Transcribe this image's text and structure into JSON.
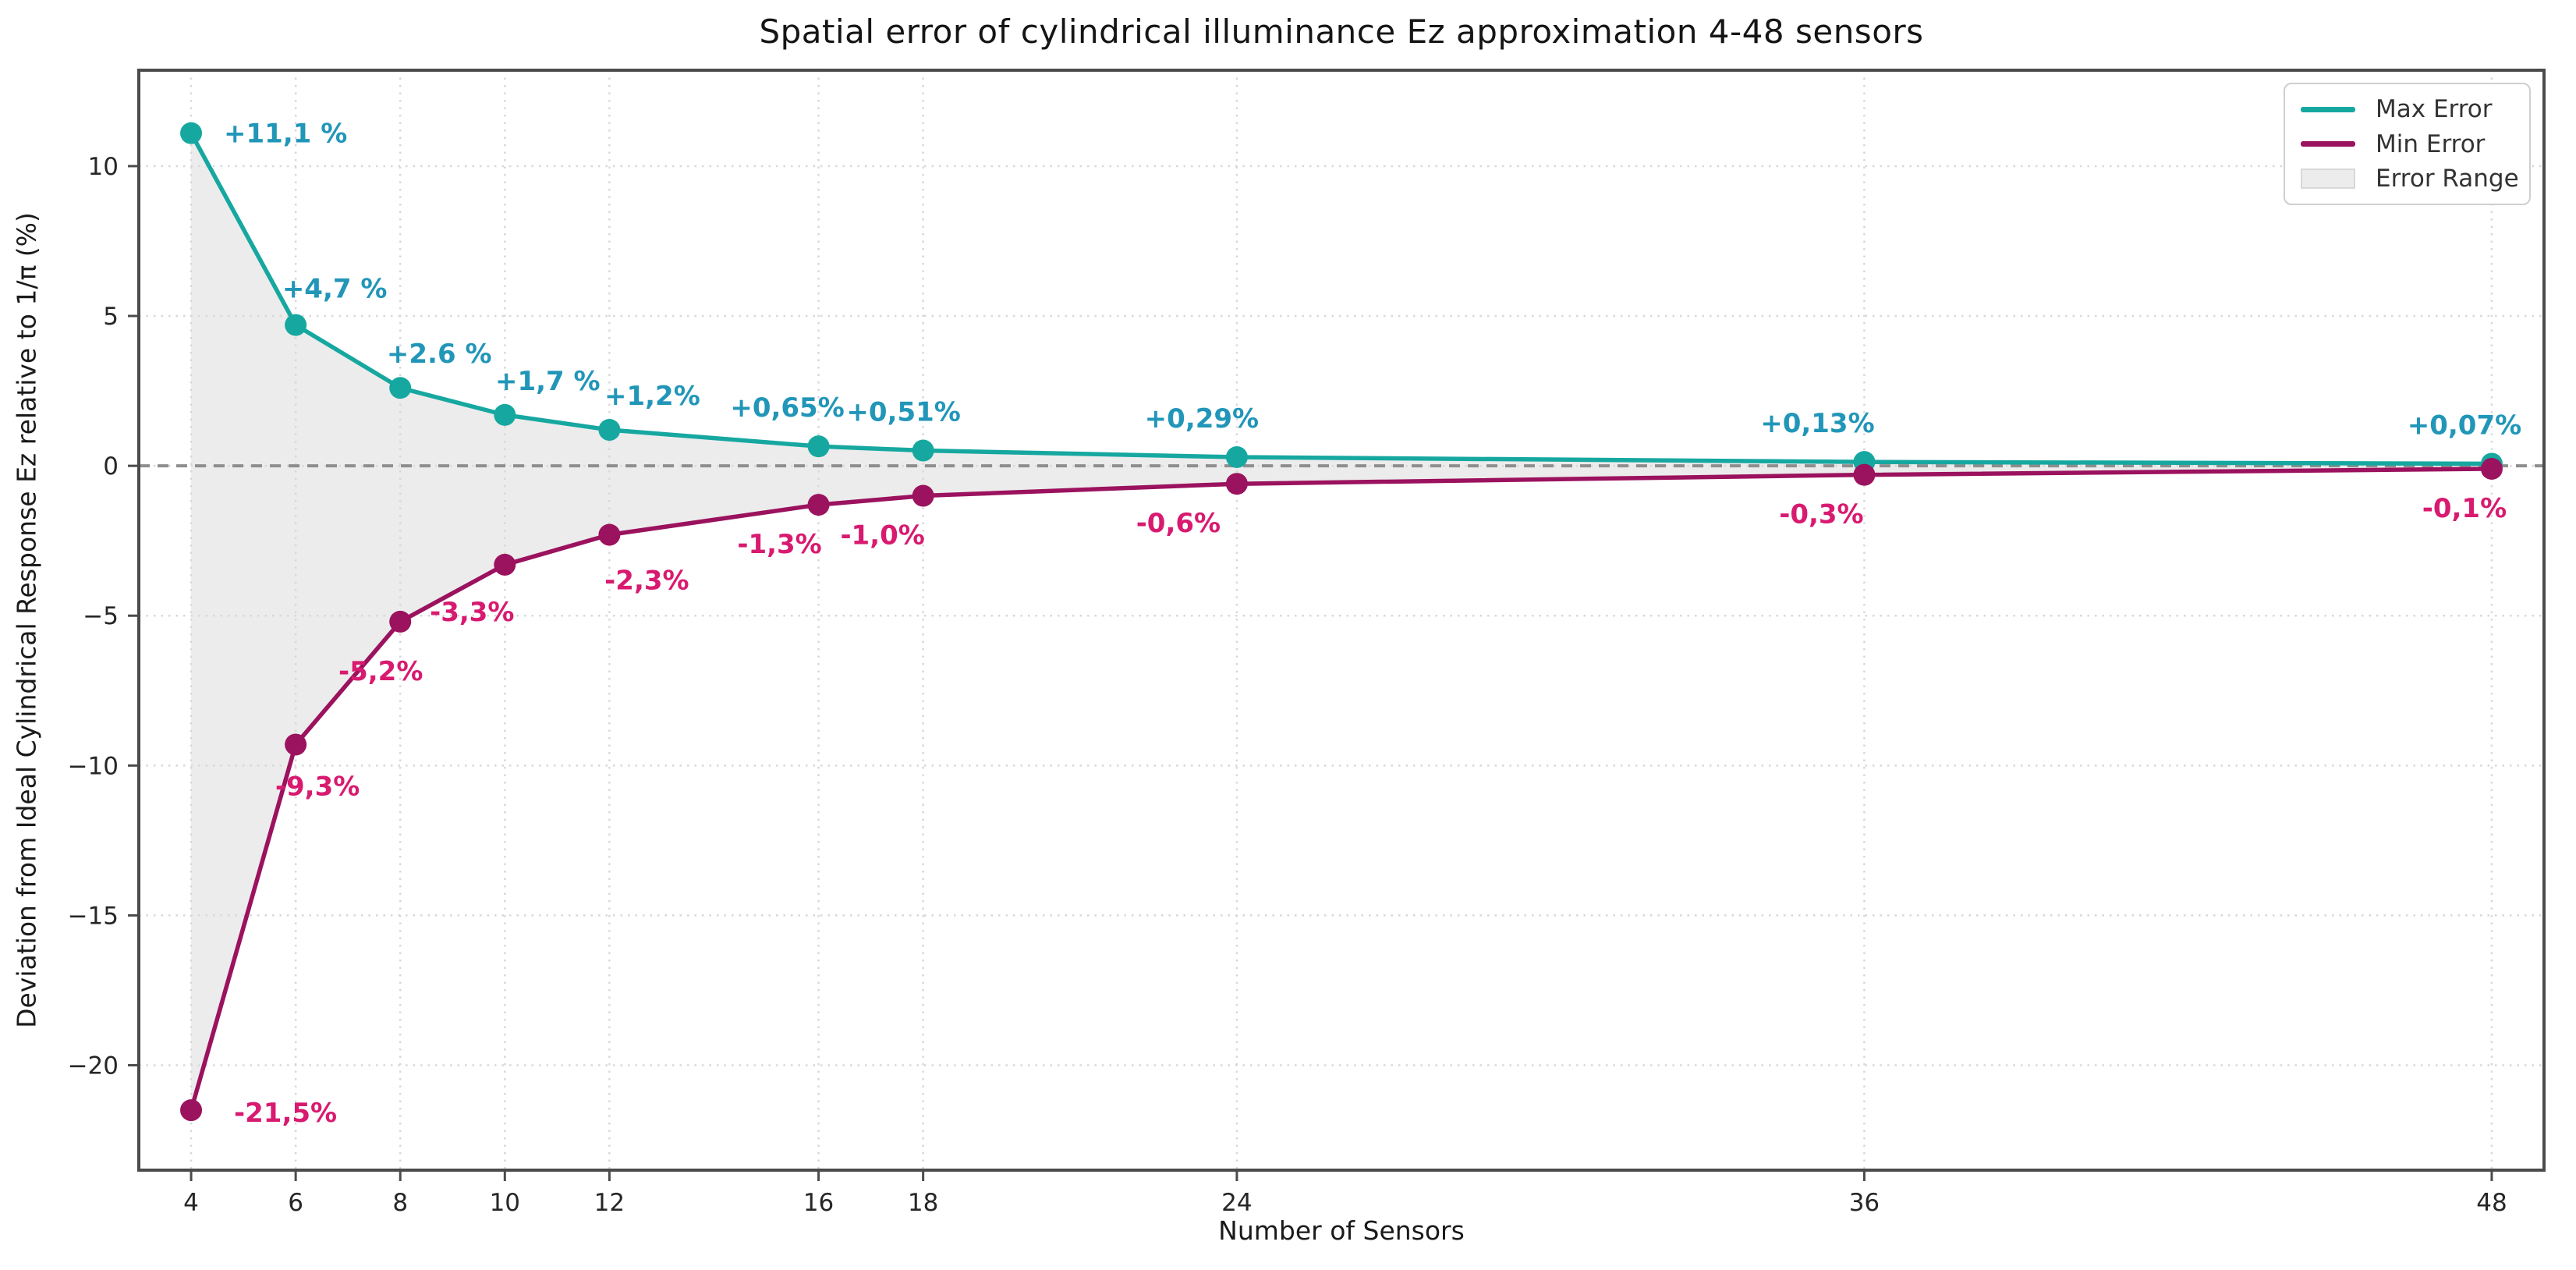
{
  "chart_data": {
    "type": "line",
    "title": "Spatial error of cylindrical illuminance Ez approximation 4-48 sensors",
    "xlabel": "Number of Sensors",
    "ylabel": "Deviation from Ideal Cylindrical Response Ez relative to 1/π (%)",
    "x": [
      4,
      6,
      8,
      10,
      12,
      16,
      18,
      24,
      36,
      48
    ],
    "x_ticks": [
      "4",
      "6",
      "8",
      "10",
      "12",
      "16",
      "18",
      "24",
      "36",
      "48"
    ],
    "y_ticks": [
      10,
      5,
      0,
      -5,
      -10,
      -15,
      -20
    ],
    "xlim": [
      3.0,
      49.0
    ],
    "ylim": [
      -23.5,
      13.2
    ],
    "grid": "dotted",
    "grid_color": "#D8D8D8",
    "zero_line": true,
    "zero_line_color": "#8E8E8E",
    "spine_color": "#4B4B4B",
    "tick_label_color": "#262626",
    "background": "#FFFFFF",
    "legend": {
      "position": "upper right",
      "entries": [
        "Max Error",
        "Min Error",
        "Error Range"
      ]
    },
    "series": [
      {
        "name": "Max Error",
        "color": "#16A8A0",
        "label_color": "#2196B8",
        "values": [
          11.1,
          4.7,
          2.6,
          1.7,
          1.2,
          0.65,
          0.51,
          0.29,
          0.13,
          0.07
        ],
        "labels": [
          "+11,1 %",
          "+4,7 %",
          "+2.6 %",
          "+1,7 %",
          "+1,2%",
          "+0,65%",
          "+0,51%",
          "+0,29%",
          "+0,13%",
          "+0,07%"
        ],
        "label_anchor": [
          "start",
          "middle",
          "middle",
          "middle",
          "middle",
          "middle",
          "middle",
          "middle",
          "middle",
          "middle"
        ],
        "label_dx": [
          42,
          50,
          50,
          55,
          55,
          -40,
          -25,
          -45,
          -60,
          -35
        ],
        "label_dy": [
          12,
          -35,
          -32,
          -32,
          -32,
          -38,
          -38,
          -38,
          -38,
          -38
        ]
      },
      {
        "name": "Min Error",
        "color": "#9B125E",
        "label_color": "#D81A70",
        "values": [
          -21.5,
          -9.3,
          -5.2,
          -3.3,
          -2.3,
          -1.3,
          -1.0,
          -0.6,
          -0.3,
          -0.1
        ],
        "labels": [
          "-21,5%",
          "-9,3%",
          "-5,2%",
          "-3,3%",
          "-2,3%",
          "-1,3%",
          "-1,0%",
          "-0,6%",
          "-0,3%",
          "-0,1%"
        ],
        "label_anchor": [
          "start",
          "middle",
          "middle",
          "middle",
          "middle",
          "middle",
          "middle",
          "middle",
          "middle",
          "middle"
        ],
        "label_dx": [
          55,
          28,
          -25,
          -42,
          48,
          -50,
          -52,
          -75,
          -55,
          -35
        ],
        "label_dy": [
          15,
          65,
          75,
          72,
          70,
          62,
          62,
          62,
          62,
          62
        ]
      }
    ],
    "fill": {
      "name": "Error Range",
      "color": "#ECECEC"
    }
  }
}
